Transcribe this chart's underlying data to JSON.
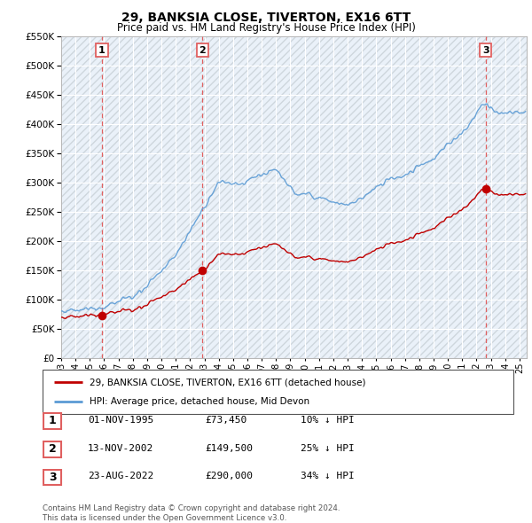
{
  "title": "29, BANKSIA CLOSE, TIVERTON, EX16 6TT",
  "subtitle": "Price paid vs. HM Land Registry's House Price Index (HPI)",
  "legend_line1": "29, BANKSIA CLOSE, TIVERTON, EX16 6TT (detached house)",
  "legend_line2": "HPI: Average price, detached house, Mid Devon",
  "transactions": [
    {
      "label": "1",
      "date": "01-NOV-1995",
      "price": 73450,
      "hpi_pct": "10% ↓ HPI",
      "x_year": 1995.84
    },
    {
      "label": "2",
      "date": "13-NOV-2002",
      "price": 149500,
      "hpi_pct": "25% ↓ HPI",
      "x_year": 2002.87
    },
    {
      "label": "3",
      "date": "23-AUG-2022",
      "price": 290000,
      "hpi_pct": "34% ↓ HPI",
      "x_year": 2022.64
    }
  ],
  "footer": "Contains HM Land Registry data © Crown copyright and database right 2024.\nThis data is licensed under the Open Government Licence v3.0.",
  "hpi_color": "#5b9bd5",
  "price_color": "#c00000",
  "vline_color": "#e06060",
  "shade_color": "#dce9f5",
  "ylim": [
    0,
    550000
  ],
  "yticks": [
    0,
    50000,
    100000,
    150000,
    200000,
    250000,
    300000,
    350000,
    400000,
    450000,
    500000,
    550000
  ],
  "xmin": 1993.0,
  "xmax": 2025.5
}
